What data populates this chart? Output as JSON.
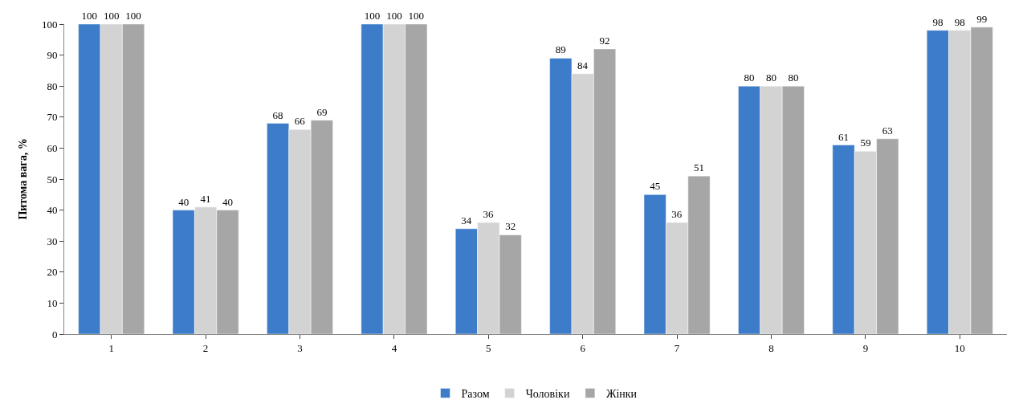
{
  "chart_data": {
    "type": "bar",
    "ylabel": "Питома вага, %",
    "categories": [
      "1",
      "2",
      "3",
      "4",
      "5",
      "6",
      "7",
      "8",
      "9",
      "10"
    ],
    "series": [
      {
        "name": "Разом",
        "color": "#3d7cc9",
        "values": [
          100,
          40,
          68,
          100,
          34,
          89,
          45,
          80,
          61,
          98
        ]
      },
      {
        "name": "Чоловіки",
        "color": "#d3d3d3",
        "values": [
          100,
          41,
          66,
          100,
          36,
          84,
          36,
          80,
          59,
          98
        ]
      },
      {
        "name": "Жінки",
        "color": "#a6a6a6",
        "values": [
          100,
          40,
          69,
          100,
          32,
          92,
          51,
          80,
          63,
          99
        ]
      }
    ],
    "ylim": [
      0,
      100
    ],
    "yticks": [
      0,
      10,
      20,
      30,
      40,
      50,
      60,
      70,
      80,
      90,
      100
    ],
    "data_labels": true,
    "grid": false,
    "legend": "bottom"
  }
}
